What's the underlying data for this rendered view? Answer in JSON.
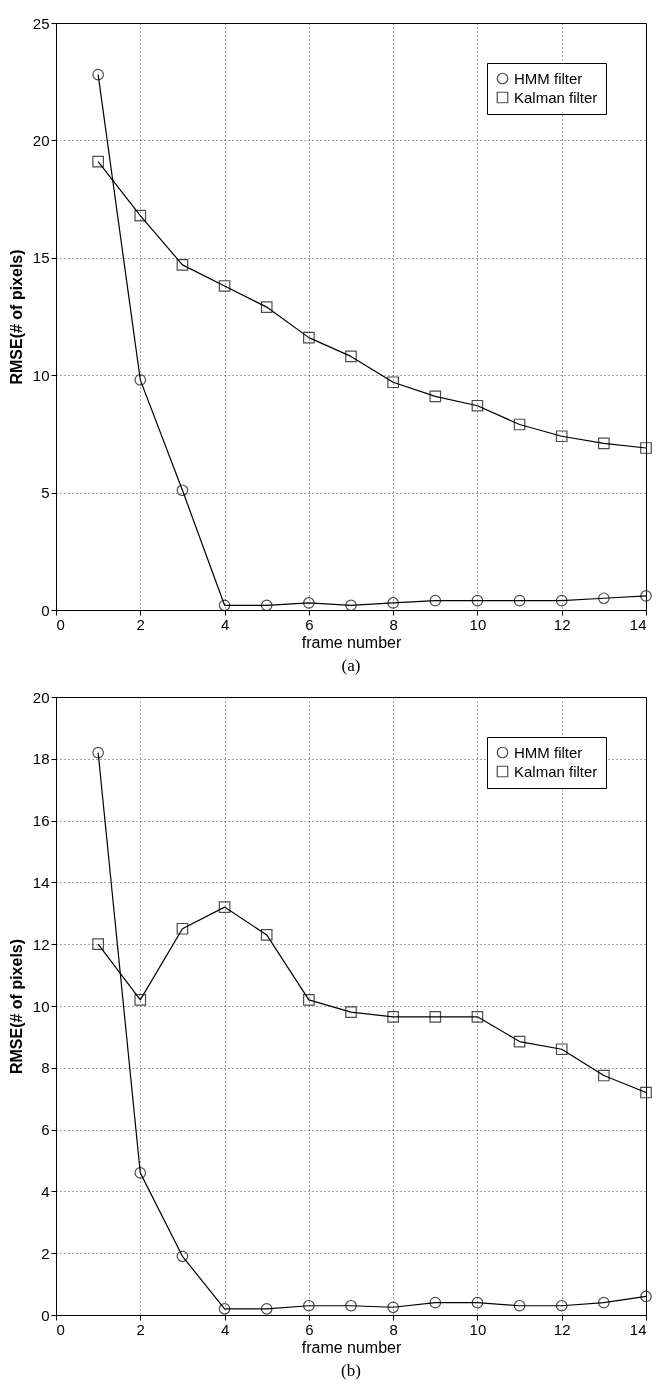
{
  "chart_data": [
    {
      "type": "line",
      "xlabel": "frame number",
      "ylabel": "RMSE(# of pixels)",
      "annotations": [
        "(a)"
      ],
      "x": [
        1,
        2,
        3,
        4,
        5,
        6,
        7,
        8,
        9,
        10,
        11,
        12,
        13,
        14
      ],
      "xlim": [
        0,
        14
      ],
      "xticks": [
        0,
        2,
        4,
        6,
        8,
        10,
        12,
        14
      ],
      "ylim": [
        0,
        25
      ],
      "yticks": [
        0,
        5,
        10,
        15,
        20,
        25
      ],
      "grid": true,
      "legend": "top right",
      "line_style": "solid",
      "series": [
        {
          "name": "HMM filter",
          "color": "#000000",
          "marker": "circle",
          "values": [
            22.8,
            9.8,
            5.1,
            0.2,
            0.2,
            0.3,
            0.2,
            0.3,
            0.4,
            0.4,
            0.4,
            0.4,
            0.5,
            0.6
          ]
        },
        {
          "name": "Kalman filter",
          "color": "#000000",
          "marker": "square",
          "values": [
            19.1,
            16.8,
            14.7,
            13.8,
            12.9,
            11.6,
            10.8,
            9.7,
            9.1,
            8.7,
            7.9,
            7.4,
            7.1,
            6.9
          ]
        }
      ]
    },
    {
      "type": "line",
      "xlabel": "frame number",
      "ylabel": "RMSE(# of pixels)",
      "annotations": [
        "(b)"
      ],
      "x": [
        1,
        2,
        3,
        4,
        5,
        6,
        7,
        8,
        9,
        10,
        11,
        12,
        13,
        14
      ],
      "xlim": [
        0,
        14
      ],
      "xticks": [
        0,
        2,
        4,
        6,
        8,
        10,
        12,
        14
      ],
      "ylim": [
        0,
        20
      ],
      "yticks": [
        0,
        2,
        4,
        6,
        8,
        10,
        12,
        14,
        16,
        18,
        20
      ],
      "grid": true,
      "legend": "top right",
      "line_style": "solid",
      "series": [
        {
          "name": "HMM filter",
          "color": "#000000",
          "marker": "circle",
          "values": [
            18.2,
            4.6,
            1.9,
            0.2,
            0.2,
            0.3,
            0.3,
            0.25,
            0.4,
            0.4,
            0.3,
            0.3,
            0.4,
            0.6
          ]
        },
        {
          "name": "Kalman filter",
          "color": "#000000",
          "marker": "square",
          "values": [
            12.0,
            10.2,
            12.5,
            13.2,
            12.3,
            10.2,
            9.8,
            9.65,
            9.65,
            9.65,
            8.85,
            8.6,
            7.75,
            7.2
          ]
        }
      ]
    }
  ]
}
